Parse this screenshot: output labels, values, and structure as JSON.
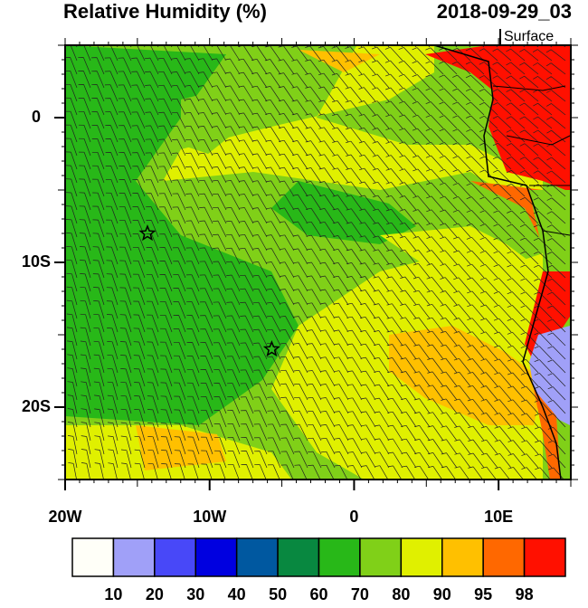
{
  "title": "Relative Humidity (%)",
  "valid_time": "2018-09-29_03",
  "level": "Surface",
  "map": {
    "xlim": [
      -20,
      15
    ],
    "ylim": [
      -25,
      5
    ],
    "xticks": [
      {
        "value": -20,
        "label": "20W"
      },
      {
        "value": -10,
        "label": "10W"
      },
      0,
      {
        "value": 10,
        "label": "10E"
      }
    ],
    "yticks": [
      0,
      {
        "value": -10,
        "label": "10S"
      },
      {
        "value": -20,
        "label": "20S"
      }
    ],
    "stars": [
      {
        "lon": -14.3,
        "lat": -8
      },
      {
        "lon": -5.7,
        "lat": -16
      }
    ]
  },
  "colorbar": {
    "colors": [
      "#fffff8",
      "#a0a0f8",
      "#4848f8",
      "#0000e0",
      "#0058a0",
      "#088840",
      "#28b818",
      "#80d018",
      "#e0f000",
      "#ffc000",
      "#ff6800",
      "#ff1000"
    ],
    "levels": [
      10,
      20,
      30,
      40,
      50,
      60,
      70,
      80,
      90,
      95,
      98
    ]
  }
}
